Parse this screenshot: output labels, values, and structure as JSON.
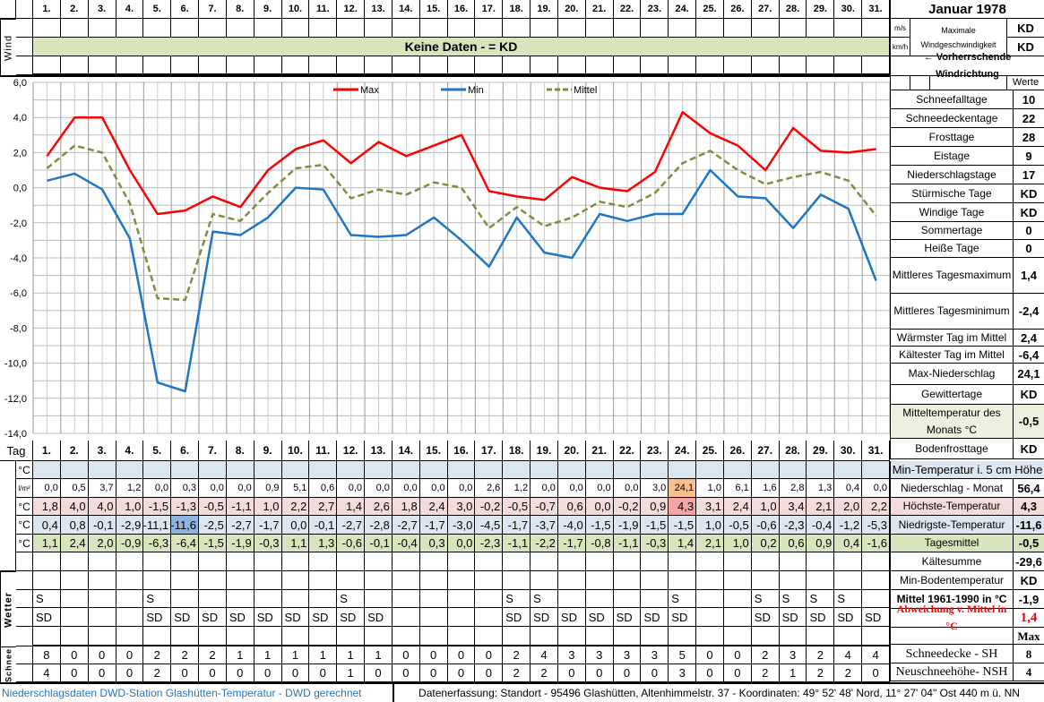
{
  "days": [
    "1.",
    "2.",
    "3.",
    "4.",
    "5.",
    "6.",
    "7.",
    "8.",
    "9.",
    "10.",
    "11.",
    "12.",
    "13.",
    "14.",
    "15.",
    "16.",
    "17.",
    "18.",
    "19.",
    "20.",
    "21.",
    "22.",
    "23.",
    "24.",
    "25.",
    "26.",
    "27.",
    "28.",
    "29.",
    "30.",
    "31."
  ],
  "labels": {
    "wind": "Wind",
    "tag": "Tag",
    "wetter": "Wetter",
    "schnee": "Schnee",
    "celsius": "°C",
    "lm2": "l/m²",
    "no_data": "Keine Daten -  = KD"
  },
  "precip": [
    "0,0",
    "0,5",
    "3,7",
    "1,2",
    "0,0",
    "0,3",
    "0,0",
    "0,0",
    "0,9",
    "5,1",
    "0,6",
    "0,0",
    "0,0",
    "0,0",
    "0,0",
    "0,0",
    "2,6",
    "1,2",
    "0,0",
    "0,0",
    "0,0",
    "0,0",
    "3,0",
    "24,1",
    "1,0",
    "6,1",
    "1,6",
    "2,8",
    "1,3",
    "0,4",
    "0,0"
  ],
  "tmax": [
    "1,8",
    "4,0",
    "4,0",
    "1,0",
    "-1,5",
    "-1,3",
    "-0,5",
    "-1,1",
    "1,0",
    "2,2",
    "2,7",
    "1,4",
    "2,6",
    "1,8",
    "2,4",
    "3,0",
    "-0,2",
    "-0,5",
    "-0,7",
    "0,6",
    "0,0",
    "-0,2",
    "0,9",
    "4,3",
    "3,1",
    "2,4",
    "1,0",
    "3,4",
    "2,1",
    "2,0",
    "2,2"
  ],
  "tmin": [
    "0,4",
    "0,8",
    "-0,1",
    "-2,9",
    "-11,1",
    "-11,6",
    "-2,5",
    "-2,7",
    "-1,7",
    "0,0",
    "-0,1",
    "-2,7",
    "-2,8",
    "-2,7",
    "-1,7",
    "-3,0",
    "-4,5",
    "-1,7",
    "-3,7",
    "-4,0",
    "-1,5",
    "-1,9",
    "-1,5",
    "-1,5",
    "1,0",
    "-0,5",
    "-0,6",
    "-2,3",
    "-0,4",
    "-1,2",
    "-5,3"
  ],
  "tmean": [
    "1,1",
    "2,4",
    "2,0",
    "-0,9",
    "-6,3",
    "-6,4",
    "-1,5",
    "-1,9",
    "-0,3",
    "1,1",
    "1,3",
    "-0,6",
    "-0,1",
    "-0,4",
    "0,3",
    "0,0",
    "-2,3",
    "-1,1",
    "-2,2",
    "-1,7",
    "-0,8",
    "-1,1",
    "-0,3",
    "1,4",
    "2,1",
    "1,0",
    "0,2",
    "0,6",
    "0,9",
    "0,4",
    "-1,6"
  ],
  "wetter_s": [
    "S",
    "",
    "",
    "",
    "S",
    "",
    "",
    "",
    "",
    "",
    "",
    "S",
    "",
    "",
    "",
    "",
    "",
    "S",
    "S",
    "",
    "",
    "",
    "",
    "S",
    "",
    "",
    "S",
    "S",
    "S",
    "S",
    ""
  ],
  "wetter_sd": [
    "SD",
    "",
    "",
    "",
    "SD",
    "SD",
    "SD",
    "SD",
    "SD",
    "SD",
    "SD",
    "SD",
    "SD",
    "",
    "",
    "",
    "",
    "SD",
    "SD",
    "SD",
    "SD",
    "SD",
    "SD",
    "SD",
    "",
    "",
    "SD",
    "SD",
    "SD",
    "SD",
    "SD"
  ],
  "snow_sh": [
    "8",
    "0",
    "0",
    "0",
    "2",
    "2",
    "2",
    "1",
    "1",
    "1",
    "1",
    "1",
    "1",
    "0",
    "0",
    "0",
    "0",
    "2",
    "4",
    "3",
    "3",
    "3",
    "3",
    "5",
    "0",
    "0",
    "2",
    "3",
    "2",
    "4",
    "4"
  ],
  "snow_nsh": [
    "4",
    "0",
    "0",
    "0",
    "2",
    "0",
    "0",
    "0",
    "0",
    "0",
    "0",
    "1",
    "0",
    "0",
    "0",
    "0",
    "0",
    "2",
    "2",
    "0",
    "0",
    "0",
    "0",
    "3",
    "0",
    "0",
    "2",
    "1",
    "2",
    "2",
    "0"
  ],
  "panel": {
    "title": "Januar 1978",
    "unit_ms": "m/s",
    "unit_kmh": "km/h",
    "wind_label": "Maximale Windgeschwindigkeit",
    "wind_ms": "KD",
    "wind_kmh": "KD",
    "wind_dir": "← Vorherrschende Windrichtung",
    "werte": "Werte",
    "stats": [
      {
        "label": "Schneefalltage",
        "value": "10"
      },
      {
        "label": "Schneedeckentage",
        "value": "22"
      },
      {
        "label": "Frosttage",
        "value": "28"
      },
      {
        "label": "Eistage",
        "value": "9"
      },
      {
        "label": "Niederschlagstage",
        "value": "17"
      },
      {
        "label": "Stürmische Tage",
        "value": "KD"
      },
      {
        "label": "Windige Tage",
        "value": "KD"
      },
      {
        "label": "Sommertage",
        "value": "0"
      },
      {
        "label": "Heiße Tage",
        "value": "0"
      },
      {
        "label": "Mittleres Tagesmaximum",
        "value": "1,4"
      },
      {
        "label": "Mittleres Tagesminimum",
        "value": "-2,4"
      },
      {
        "label": "Wärmster Tag im Mittel",
        "value": "2,4"
      },
      {
        "label": "Kältester Tag im Mittel",
        "value": "-6,4"
      },
      {
        "label": "Max-Niederschlag",
        "value": "24,1"
      },
      {
        "label": "Gewittertage",
        "value": "KD"
      },
      {
        "label": "Mitteltemperatur des Monats °C",
        "value": "-0,5"
      },
      {
        "label": "Bodenfrosttage",
        "value": "KD"
      }
    ],
    "min5cm": "Min-Temperatur i. 5 cm Höhe",
    "stats2": [
      {
        "label": "Niederschlag - Monat",
        "value": "56,4"
      },
      {
        "label": "Höchste-Temperatur",
        "value": "4,3"
      },
      {
        "label": "Niedrigste-Temperatur",
        "value": "-11,6"
      },
      {
        "label": "Tagesmittel",
        "value": "-0,5"
      },
      {
        "label": "Kältesumme",
        "value": "-29,6"
      },
      {
        "label": "Min-Bodentemperatur",
        "value": "KD"
      },
      {
        "label": "Mittel 1961-1990 in °C",
        "value": "-1,9"
      },
      {
        "label": "Abweichung v. Mittel in °C",
        "value": "1,4"
      },
      {
        "label": "",
        "value": "Max"
      },
      {
        "label": "Schneedecke -   SH",
        "value": "8"
      },
      {
        "label": "Neuschneehöhe- NSH",
        "value": "4"
      }
    ]
  },
  "footer": {
    "left": "Niederschlagsdaten DWD-Station Glashütten-Temperatur -  DWD gerechnet",
    "right": "Datenerfassung: Standort - 95496 Glashütten, Altenhimmelstr. 37 - Koordinaten: 49° 52' 48' Nord,  11° 27' 04\" Ost  440 m ü. NN"
  },
  "colors": {
    "max": "#ff0000",
    "min": "#1f77c4",
    "mittel": "#76923c",
    "green": "#d8e4bc",
    "blue": "#dce6f1",
    "pink": "#f2dcdb",
    "minHi": "#8db4e2",
    "precipHi": "#fabf8f",
    "maxHi": "#f4a6a6",
    "footerBlue": "#2e75b6"
  },
  "chart_data": {
    "type": "line",
    "x": [
      1,
      2,
      3,
      4,
      5,
      6,
      7,
      8,
      9,
      10,
      11,
      12,
      13,
      14,
      15,
      16,
      17,
      18,
      19,
      20,
      21,
      22,
      23,
      24,
      25,
      26,
      27,
      28,
      29,
      30,
      31
    ],
    "series": [
      {
        "name": "Max",
        "values": [
          1.8,
          4.0,
          4.0,
          1.0,
          -1.5,
          -1.3,
          -0.5,
          -1.1,
          1.0,
          2.2,
          2.7,
          1.4,
          2.6,
          1.8,
          2.4,
          3.0,
          -0.2,
          -0.5,
          -0.7,
          0.6,
          0.0,
          -0.2,
          0.9,
          4.3,
          3.1,
          2.4,
          1.0,
          3.4,
          2.1,
          2.0,
          2.2
        ]
      },
      {
        "name": "Min",
        "values": [
          0.4,
          0.8,
          -0.1,
          -2.9,
          -11.1,
          -11.6,
          -2.5,
          -2.7,
          -1.7,
          0.0,
          -0.1,
          -2.7,
          -2.8,
          -2.7,
          -1.7,
          -3.0,
          -4.5,
          -1.7,
          -3.7,
          -4.0,
          -1.5,
          -1.9,
          -1.5,
          -1.5,
          1.0,
          -0.5,
          -0.6,
          -2.3,
          -0.4,
          -1.2,
          -5.3
        ]
      },
      {
        "name": "Mittel",
        "values": [
          1.1,
          2.4,
          2.0,
          -0.9,
          -6.3,
          -6.4,
          -1.5,
          -1.9,
          -0.3,
          1.1,
          1.3,
          -0.6,
          -0.1,
          -0.4,
          0.3,
          0.0,
          -2.3,
          -1.1,
          -2.2,
          -1.7,
          -0.8,
          -1.1,
          -0.3,
          1.4,
          2.1,
          1.0,
          0.2,
          0.6,
          0.9,
          0.4,
          -1.6
        ]
      }
    ],
    "yticks": [
      "6,0",
      "4,0",
      "2,0",
      "0,0",
      "-2,0",
      "-4,0",
      "-6,0",
      "-8,0",
      "-10,0",
      "-12,0",
      "-14,0"
    ],
    "ylim": [
      -14,
      6
    ],
    "legend": "top-center",
    "grid": true
  }
}
